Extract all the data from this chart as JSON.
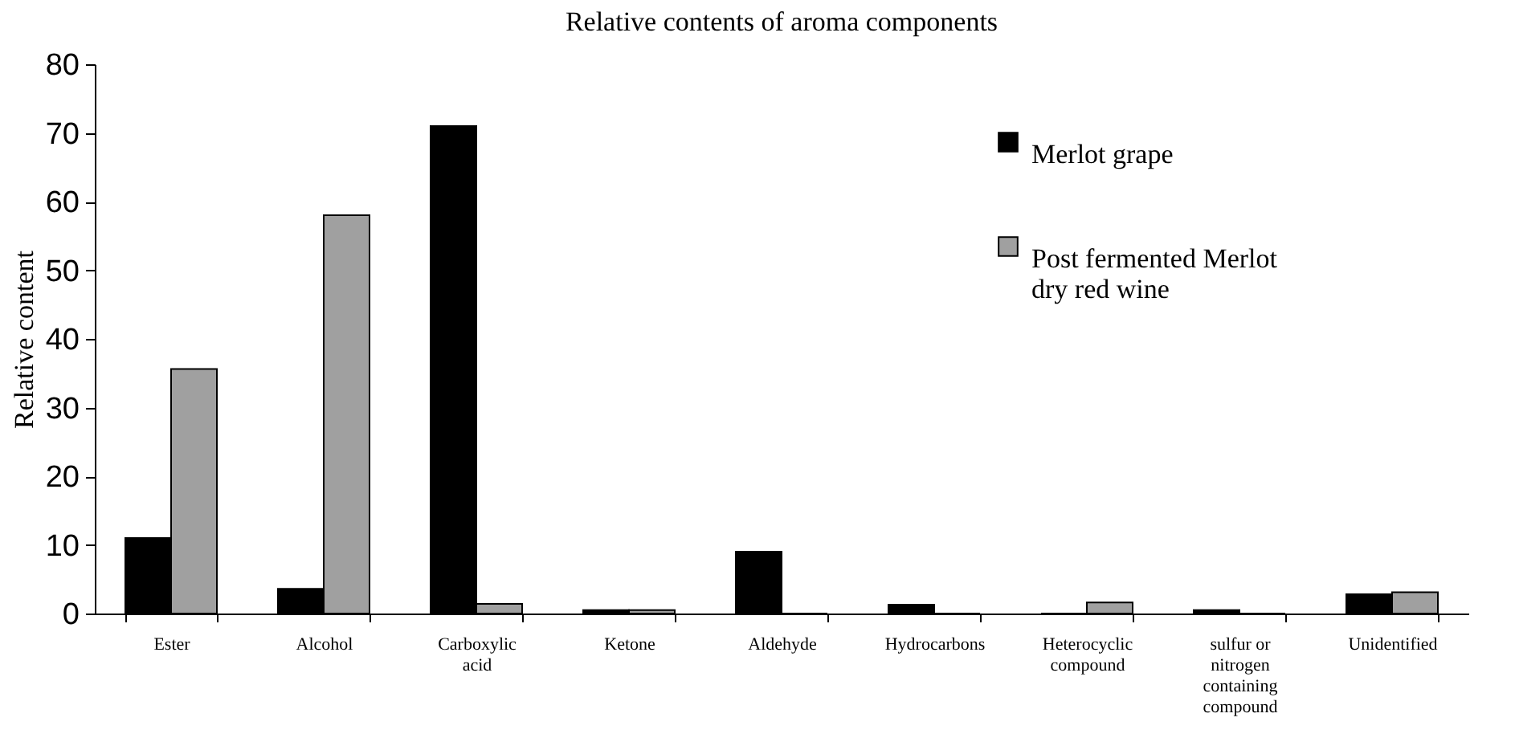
{
  "chart_data": {
    "type": "bar",
    "title": "Relative contents of aroma components",
    "ylabel": "Relative content",
    "categories": [
      "Ester",
      "Alcohol",
      "Carboxylic acid",
      "Ketone",
      "Aldehyde",
      "Hydrocarbons",
      "Heterocyclic compound",
      "sulfur or nitrogen containing compound",
      "Unidentified"
    ],
    "series": [
      {
        "name": "Merlot grape",
        "color": "#000000",
        "values": [
          11,
          3.6,
          71,
          0.5,
          9,
          1.3,
          0,
          0.5,
          2.8
        ]
      },
      {
        "name": "Post fermented Merlot dry red wine",
        "color": "#a0a0a0",
        "values": [
          35.6,
          58,
          1.4,
          0.5,
          0,
          0,
          1.6,
          0,
          3.1
        ]
      }
    ],
    "ylim": [
      0,
      80
    ],
    "yticks": [
      0,
      10,
      20,
      30,
      40,
      50,
      60,
      70,
      80
    ],
    "grid": false,
    "legend": "top right"
  }
}
